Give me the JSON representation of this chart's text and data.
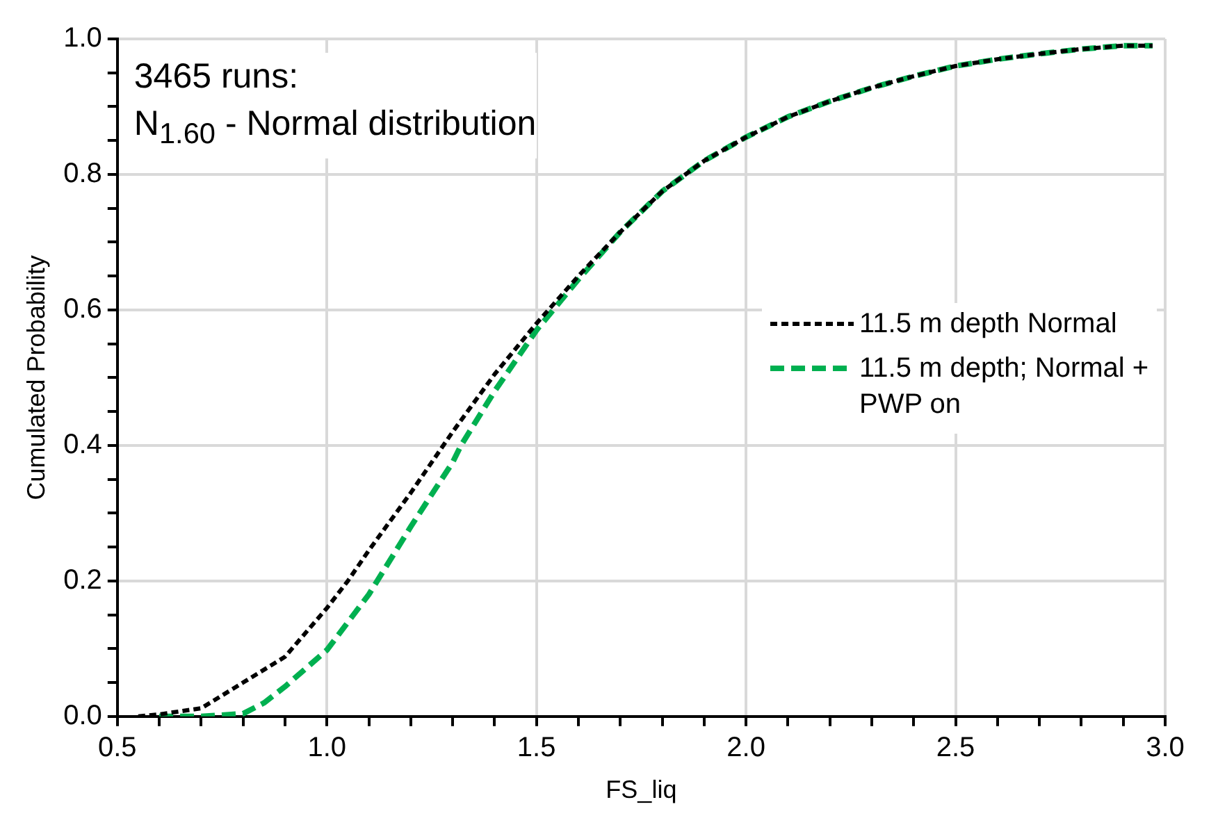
{
  "chart_data": {
    "type": "line",
    "title": "3465 runs:",
    "subtitle": "N$_{1.60}$ - Normal distribution",
    "xlabel": "FS_liq",
    "ylabel": "Cumulated Probability",
    "xlim": [
      0.5,
      3.0
    ],
    "xticks": [
      0.5,
      {
        "value": 0.6,
        "label": null
      },
      {
        "value": 0.7,
        "label": null
      },
      {
        "value": 0.8,
        "label": null
      },
      {
        "value": 0.9,
        "label": null
      },
      {
        "value": 1.0,
        "label": "1.0"
      },
      {
        "value": 1.1,
        "label": null
      },
      {
        "value": 1.2,
        "label": null
      },
      {
        "value": 1.3,
        "label": null
      },
      {
        "value": 1.4,
        "label": null
      },
      1.5,
      {
        "value": 1.6,
        "label": null
      },
      {
        "value": 1.7,
        "label": null
      },
      {
        "value": 1.8,
        "label": null
      },
      {
        "value": 1.9,
        "label": null
      },
      {
        "value": 2.0,
        "label": "2.0"
      },
      {
        "value": 2.1,
        "label": null
      },
      {
        "value": 2.2,
        "label": null
      },
      {
        "value": 2.3,
        "label": null
      },
      {
        "value": 2.4,
        "label": null
      },
      2.5,
      {
        "value": 2.6,
        "label": null
      },
      {
        "value": 2.7,
        "label": null
      },
      {
        "value": 2.8,
        "label": null
      },
      {
        "value": 2.9,
        "label": null
      },
      {
        "value": 3.0,
        "label": "3.0"
      }
    ],
    "ylim": [
      0,
      1.0
    ],
    "yticks": [
      {
        "value": 0,
        "label": "0.0"
      },
      {
        "value": 0.05,
        "label": null
      },
      {
        "value": 0.1,
        "label": null
      },
      {
        "value": 0.15,
        "label": null
      },
      0.2,
      {
        "value": 0.25,
        "label": null
      },
      {
        "value": 0.3,
        "label": null
      },
      {
        "value": 0.35,
        "label": null
      },
      0.4,
      {
        "value": 0.45,
        "label": null
      },
      {
        "value": 0.5,
        "label": null
      },
      {
        "value": 0.55,
        "label": null
      },
      0.6,
      {
        "value": 0.65,
        "label": null
      },
      {
        "value": 0.7,
        "label": null
      },
      {
        "value": 0.75,
        "label": null
      },
      0.8,
      {
        "value": 0.85,
        "label": null
      },
      {
        "value": 0.9,
        "label": null
      },
      {
        "value": 0.95,
        "label": null
      },
      {
        "value": 1.0,
        "label": "1.0"
      }
    ],
    "grid": true,
    "legend": "right",
    "line_style": "dashed",
    "marker": "none",
    "series": [
      {
        "name": "11.5 m depth Normal",
        "color": "#000000",
        "x": [
          0.55,
          0.6,
          0.7,
          0.8,
          0.9,
          1.0,
          1.05,
          1.1,
          1.2,
          1.3,
          1.4,
          1.5,
          1.6,
          1.7,
          1.8,
          1.9,
          2.0,
          2.1,
          2.2,
          2.3,
          2.4,
          2.5,
          2.6,
          2.7,
          2.8,
          2.9,
          2.97
        ],
        "values": [
          0.0,
          0.003,
          0.012,
          0.05,
          0.088,
          0.16,
          0.2,
          0.245,
          0.33,
          0.42,
          0.505,
          0.58,
          0.65,
          0.715,
          0.775,
          0.82,
          0.855,
          0.885,
          0.908,
          0.928,
          0.945,
          0.96,
          0.97,
          0.978,
          0.985,
          0.99,
          0.99
        ]
      },
      {
        "name": "11.5 m depth; Normal + PWP on",
        "color": "#00b050",
        "x": [
          0.6,
          0.7,
          0.8,
          0.85,
          0.9,
          1.0,
          1.1,
          1.12,
          1.2,
          1.3,
          1.32,
          1.4,
          1.5,
          1.6,
          1.7,
          1.8,
          1.9,
          2.0,
          2.1,
          2.2,
          2.3,
          2.4,
          2.5,
          2.6,
          2.7,
          2.8,
          2.9,
          2.97
        ],
        "values": [
          0.0,
          0.0,
          0.004,
          0.02,
          0.044,
          0.098,
          0.18,
          0.2,
          0.28,
          0.375,
          0.4,
          0.48,
          0.57,
          0.645,
          0.715,
          0.775,
          0.82,
          0.855,
          0.885,
          0.908,
          0.928,
          0.945,
          0.96,
          0.97,
          0.978,
          0.985,
          0.99,
          0.99
        ]
      }
    ]
  }
}
